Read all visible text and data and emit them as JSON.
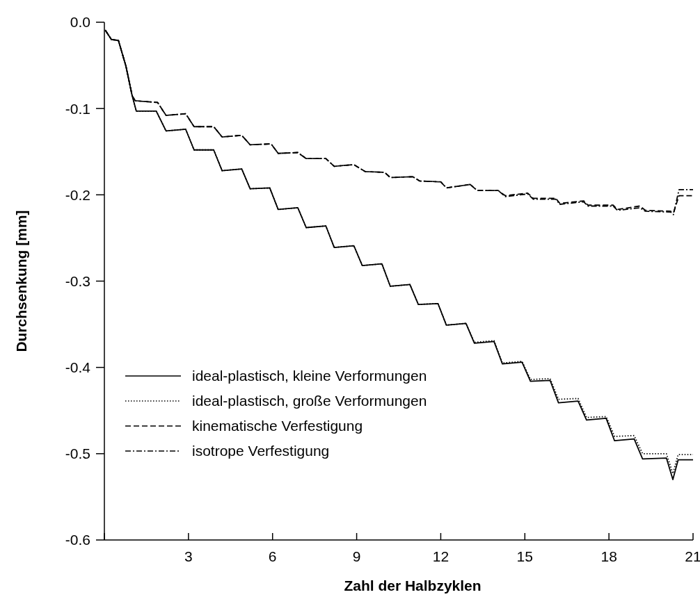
{
  "chart_data": {
    "type": "line",
    "xlabel": "Zahl der Halbzyklen",
    "ylabel": "Durchsenkung [mm]",
    "xlim": [
      0,
      21
    ],
    "xticks": [
      {
        "value": 0,
        "label": null
      },
      3,
      6,
      9,
      12,
      15,
      18,
      21
    ],
    "ylim": [
      -0.6,
      0
    ],
    "yticks": [
      {
        "value": -0.6,
        "label": "-0.6"
      },
      {
        "value": -0.5,
        "label": "-0.5"
      },
      {
        "value": -0.4,
        "label": "-0.4"
      },
      {
        "value": -0.3,
        "label": "-0.3"
      },
      {
        "value": -0.2,
        "label": "-0.2"
      },
      {
        "value": -0.1,
        "label": "-0.1"
      },
      {
        "value": 0,
        "label": "0.0"
      }
    ],
    "grid": false,
    "legend": "bottom left",
    "marker": "none",
    "series": [
      {
        "name": "ideal-plastisch, kleine Verformungen",
        "color": "#000000",
        "line_style": "solid",
        "x": [
          0.03,
          0.25,
          0.5,
          0.77,
          0.99,
          1.14,
          1.85,
          2.2,
          2.9,
          3.2,
          3.9,
          4.2,
          4.9,
          5.2,
          5.9,
          6.2,
          6.9,
          7.2,
          7.9,
          8.2,
          8.9,
          9.2,
          9.9,
          10.2,
          10.9,
          11.2,
          11.9,
          12.2,
          12.9,
          13.2,
          13.9,
          14.2,
          14.9,
          15.2,
          15.9,
          16.2,
          16.9,
          17.2,
          17.9,
          18.2,
          18.9,
          19.2,
          20.05,
          20.28,
          20.47,
          21
        ],
        "values": [
          -0.009,
          -0.02,
          -0.021,
          -0.051,
          -0.085,
          -0.103,
          -0.103,
          -0.126,
          -0.124,
          -0.148,
          -0.148,
          -0.172,
          -0.17,
          -0.193,
          -0.192,
          -0.217,
          -0.215,
          -0.238,
          -0.236,
          -0.261,
          -0.259,
          -0.282,
          -0.28,
          -0.306,
          -0.304,
          -0.327,
          -0.326,
          -0.351,
          -0.349,
          -0.372,
          -0.37,
          -0.396,
          -0.394,
          -0.416,
          -0.415,
          -0.441,
          -0.439,
          -0.461,
          -0.459,
          -0.485,
          -0.483,
          -0.506,
          -0.505,
          -0.53,
          -0.507,
          -0.507
        ]
      },
      {
        "name": "ideal-plastisch, große Verformungen",
        "color": "#000000",
        "line_style": "dotted",
        "x": [
          0.03,
          0.25,
          0.5,
          0.77,
          0.99,
          1.14,
          1.85,
          2.2,
          2.9,
          3.2,
          3.9,
          4.2,
          4.9,
          5.2,
          5.9,
          6.2,
          6.9,
          7.2,
          7.9,
          8.2,
          8.9,
          9.2,
          9.9,
          10.2,
          10.9,
          11.2,
          11.9,
          12.2,
          12.9,
          13.2,
          13.9,
          14.2,
          14.9,
          15.2,
          15.9,
          16.2,
          16.9,
          17.2,
          17.9,
          18.2,
          18.9,
          19.2,
          20.05,
          20.28,
          20.47,
          21
        ],
        "values": [
          -0.009,
          -0.02,
          -0.021,
          -0.051,
          -0.085,
          -0.103,
          -0.103,
          -0.126,
          -0.124,
          -0.148,
          -0.148,
          -0.172,
          -0.17,
          -0.193,
          -0.192,
          -0.217,
          -0.215,
          -0.238,
          -0.236,
          -0.261,
          -0.259,
          -0.282,
          -0.28,
          -0.306,
          -0.304,
          -0.327,
          -0.326,
          -0.351,
          -0.349,
          -0.371,
          -0.369,
          -0.395,
          -0.393,
          -0.414,
          -0.413,
          -0.437,
          -0.436,
          -0.458,
          -0.457,
          -0.48,
          -0.479,
          -0.5,
          -0.5,
          -0.523,
          -0.501,
          -0.501
        ]
      },
      {
        "name": "kinematische Verfestigung",
        "color": "#000000",
        "line_style": "dashed",
        "x": [
          0.03,
          0.25,
          0.5,
          0.77,
          0.99,
          1.1,
          1.9,
          2.2,
          2.9,
          3.2,
          3.9,
          4.2,
          4.9,
          5.2,
          5.95,
          6.2,
          6.9,
          7.2,
          7.9,
          8.2,
          8.9,
          9.3,
          10.0,
          10.2,
          11.0,
          11.25,
          12.0,
          12.2,
          13.05,
          13.3,
          14.05,
          14.3,
          15.1,
          15.3,
          16.1,
          16.25,
          17.1,
          17.25,
          18.15,
          18.3,
          19.1,
          19.3,
          20.2,
          20.3,
          20.5,
          21
        ],
        "values": [
          -0.009,
          -0.02,
          -0.021,
          -0.051,
          -0.085,
          -0.091,
          -0.093,
          -0.108,
          -0.106,
          -0.121,
          -0.121,
          -0.133,
          -0.131,
          -0.142,
          -0.141,
          -0.152,
          -0.151,
          -0.158,
          -0.158,
          -0.167,
          -0.165,
          -0.173,
          -0.174,
          -0.18,
          -0.179,
          -0.184,
          -0.185,
          -0.192,
          -0.188,
          -0.195,
          -0.195,
          -0.201,
          -0.198,
          -0.204,
          -0.204,
          -0.21,
          -0.207,
          -0.212,
          -0.212,
          -0.217,
          -0.213,
          -0.218,
          -0.219,
          -0.221,
          -0.201,
          -0.201
        ]
      },
      {
        "name": "isotrope Verfestigung",
        "color": "#000000",
        "line_style": "dashdot",
        "x": [
          0.03,
          0.25,
          0.5,
          0.77,
          0.99,
          1.1,
          1.9,
          2.2,
          2.9,
          3.2,
          3.9,
          4.2,
          4.9,
          5.2,
          5.95,
          6.2,
          6.9,
          7.2,
          7.9,
          8.2,
          8.9,
          9.3,
          10.0,
          10.2,
          11.0,
          11.25,
          12.0,
          12.2,
          13.05,
          13.3,
          14.05,
          14.3,
          15.1,
          15.3,
          16.1,
          16.25,
          17.1,
          17.25,
          18.15,
          18.3,
          19.1,
          19.3,
          20.2,
          20.3,
          20.5,
          21
        ],
        "values": [
          -0.009,
          -0.02,
          -0.021,
          -0.051,
          -0.085,
          -0.091,
          -0.093,
          -0.108,
          -0.106,
          -0.121,
          -0.121,
          -0.133,
          -0.131,
          -0.142,
          -0.141,
          -0.152,
          -0.151,
          -0.158,
          -0.158,
          -0.167,
          -0.165,
          -0.173,
          -0.174,
          -0.18,
          -0.179,
          -0.184,
          -0.185,
          -0.192,
          -0.188,
          -0.195,
          -0.195,
          -0.202,
          -0.199,
          -0.205,
          -0.205,
          -0.211,
          -0.208,
          -0.213,
          -0.213,
          -0.218,
          -0.215,
          -0.219,
          -0.22,
          -0.223,
          -0.194,
          -0.194
        ]
      }
    ]
  }
}
